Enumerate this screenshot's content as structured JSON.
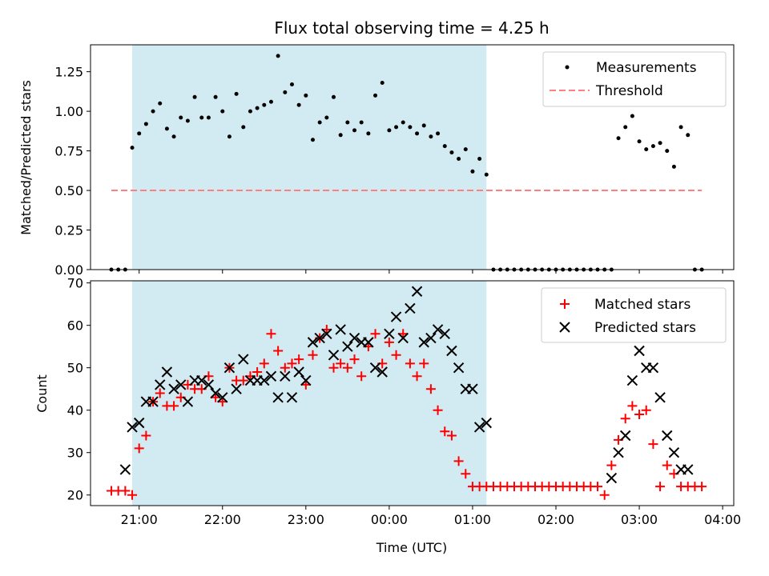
{
  "chart_data": [
    {
      "type": "scatter",
      "title": "Flux total observing time = 4.25 h",
      "xlabel": "",
      "ylabel": "Matched/Predicted stars",
      "ylim": [
        0,
        1.42
      ],
      "xlim": [
        "20:25",
        "04:08"
      ],
      "yticks": [
        "0.00",
        "0.25",
        "0.50",
        "0.75",
        "1.00",
        "1.25"
      ],
      "shaded_interval": {
        "start": "20:55",
        "end": "01:10",
        "color": "#add8e6"
      },
      "legend": {
        "placement": "top-right",
        "entries": [
          "Measurements",
          "Threshold"
        ]
      },
      "series": [
        {
          "name": "Measurements",
          "marker": "dot",
          "color": "#000000",
          "x": [
            "20:40",
            "20:45",
            "20:50",
            "20:55",
            "21:00",
            "21:05",
            "21:10",
            "21:15",
            "21:20",
            "21:25",
            "21:30",
            "21:35",
            "21:40",
            "21:45",
            "21:50",
            "21:55",
            "22:00",
            "22:05",
            "22:10",
            "22:15",
            "22:20",
            "22:25",
            "22:30",
            "22:35",
            "22:40",
            "22:45",
            "22:50",
            "22:55",
            "23:00",
            "23:05",
            "23:10",
            "23:15",
            "23:20",
            "23:25",
            "23:30",
            "23:35",
            "23:40",
            "23:45",
            "23:50",
            "23:55",
            "00:00",
            "00:05",
            "00:10",
            "00:15",
            "00:20",
            "00:25",
            "00:30",
            "00:35",
            "00:40",
            "00:45",
            "00:50",
            "00:55",
            "01:00",
            "01:05",
            "01:10",
            "01:15",
            "01:20",
            "01:25",
            "01:30",
            "01:35",
            "01:40",
            "01:45",
            "01:50",
            "01:55",
            "02:00",
            "02:05",
            "02:10",
            "02:15",
            "02:20",
            "02:25",
            "02:30",
            "02:35",
            "02:40",
            "02:45",
            "02:50",
            "02:55",
            "03:00",
            "03:05",
            "03:10",
            "03:15",
            "03:20",
            "03:25",
            "03:30",
            "03:35",
            "03:40",
            "03:45"
          ],
          "y": [
            0,
            0,
            0,
            0.77,
            0.86,
            0.92,
            1.0,
            1.05,
            0.89,
            0.84,
            0.96,
            0.94,
            1.09,
            0.96,
            0.96,
            1.09,
            1.0,
            0.84,
            1.11,
            0.9,
            1.0,
            1.02,
            1.04,
            1.06,
            1.35,
            1.12,
            1.17,
            1.04,
            1.1,
            0.82,
            0.93,
            0.96,
            1.09,
            0.85,
            0.93,
            0.88,
            0.93,
            0.86,
            1.1,
            1.18,
            0.88,
            0.9,
            0.93,
            0.9,
            0.86,
            0.91,
            0.84,
            0.86,
            0.78,
            0.74,
            0.7,
            0.76,
            0.62,
            0.7,
            0.6,
            0,
            0,
            0,
            0,
            0,
            0,
            0,
            0,
            0,
            0,
            0,
            0,
            0,
            0,
            0,
            0,
            0,
            0,
            0.83,
            0.9,
            0.97,
            0.81,
            0.76,
            0.78,
            0.8,
            0.75,
            0.65,
            0.9,
            0.85,
            0,
            0
          ]
        },
        {
          "name": "Threshold",
          "marker": "dashed-line",
          "color": "#ff7f7f",
          "x": [
            "20:40",
            "03:45"
          ],
          "y": [
            0.5,
            0.5
          ]
        }
      ]
    },
    {
      "type": "scatter",
      "title": "",
      "xlabel": "Time (UTC)",
      "ylabel": "Count",
      "ylim": [
        17.5,
        70.5
      ],
      "xlim": [
        "20:25",
        "04:08"
      ],
      "xticks": [
        "21:00",
        "22:00",
        "23:00",
        "00:00",
        "01:00",
        "02:00",
        "03:00",
        "04:00"
      ],
      "yticks": [
        "20",
        "30",
        "40",
        "50",
        "60",
        "70"
      ],
      "shaded_interval": {
        "start": "20:55",
        "end": "01:10",
        "color": "#add8e6"
      },
      "legend": {
        "placement": "top-right",
        "entries": [
          "Matched stars",
          "Predicted stars"
        ]
      },
      "series": [
        {
          "name": "Matched stars",
          "marker": "plus",
          "color": "#ff0000",
          "x": [
            "20:40",
            "20:45",
            "20:50",
            "20:55",
            "21:00",
            "21:05",
            "21:10",
            "21:15",
            "21:20",
            "21:25",
            "21:30",
            "21:35",
            "21:40",
            "21:45",
            "21:50",
            "21:55",
            "22:00",
            "22:05",
            "22:10",
            "22:15",
            "22:20",
            "22:25",
            "22:30",
            "22:35",
            "22:40",
            "22:45",
            "22:50",
            "22:55",
            "23:00",
            "23:05",
            "23:10",
            "23:15",
            "23:20",
            "23:25",
            "23:30",
            "23:35",
            "23:40",
            "23:45",
            "23:50",
            "23:55",
            "00:00",
            "00:05",
            "00:10",
            "00:15",
            "00:20",
            "00:25",
            "00:30",
            "00:35",
            "00:40",
            "00:45",
            "00:50",
            "00:55",
            "01:00",
            "01:05",
            "01:10",
            "01:15",
            "01:20",
            "01:25",
            "01:30",
            "01:35",
            "01:40",
            "01:45",
            "01:50",
            "01:55",
            "02:00",
            "02:05",
            "02:10",
            "02:15",
            "02:20",
            "02:25",
            "02:30",
            "02:35",
            "02:40",
            "02:45",
            "02:50",
            "02:55",
            "03:00",
            "03:05",
            "03:10",
            "03:15",
            "03:20",
            "03:25",
            "03:30",
            "03:35",
            "03:40",
            "03:45"
          ],
          "y": [
            21,
            21,
            21,
            20,
            31,
            34,
            42,
            44,
            41,
            41,
            43,
            46,
            45,
            45,
            48,
            43,
            42,
            50,
            47,
            47,
            48,
            49,
            51,
            58,
            54,
            50,
            51,
            52,
            46,
            53,
            57,
            59,
            50,
            51,
            50,
            52,
            48,
            55,
            58,
            51,
            56,
            53,
            58,
            51,
            48,
            51,
            45,
            40,
            35,
            34,
            28,
            25,
            22,
            22,
            22,
            22,
            22,
            22,
            22,
            22,
            22,
            22,
            22,
            22,
            22,
            22,
            22,
            22,
            22,
            22,
            22,
            20,
            27,
            33,
            38,
            41,
            39,
            40,
            32,
            22,
            27,
            25,
            22,
            22,
            22,
            22
          ]
        },
        {
          "name": "Predicted stars",
          "marker": "x",
          "color": "#000000",
          "x": [
            "20:50",
            "20:55",
            "21:00",
            "21:05",
            "21:10",
            "21:15",
            "21:20",
            "21:25",
            "21:30",
            "21:35",
            "21:40",
            "21:45",
            "21:50",
            "21:55",
            "22:00",
            "22:05",
            "22:10",
            "22:15",
            "22:20",
            "22:25",
            "22:30",
            "22:35",
            "22:40",
            "22:45",
            "22:50",
            "22:55",
            "23:00",
            "23:05",
            "23:10",
            "23:15",
            "23:20",
            "23:25",
            "23:30",
            "23:35",
            "23:40",
            "23:45",
            "23:50",
            "23:55",
            "00:00",
            "00:05",
            "00:10",
            "00:15",
            "00:20",
            "00:25",
            "00:30",
            "00:35",
            "00:40",
            "00:45",
            "00:50",
            "00:55",
            "01:00",
            "01:05",
            "01:10",
            "02:40",
            "02:45",
            "02:50",
            "02:55",
            "03:00",
            "03:05",
            "03:10",
            "03:15",
            "03:20",
            "03:25",
            "03:30",
            "03:35"
          ],
          "y": [
            26,
            36,
            37,
            42,
            42,
            46,
            49,
            45,
            46,
            42,
            47,
            47,
            46,
            44,
            43,
            50,
            45,
            52,
            47,
            47,
            47,
            48,
            43,
            48,
            43,
            49,
            47,
            56,
            57,
            58,
            53,
            59,
            55,
            57,
            56,
            56,
            50,
            49,
            58,
            62,
            57,
            64,
            68,
            56,
            57,
            59,
            58,
            54,
            50,
            45,
            45,
            36,
            37,
            24,
            30,
            34,
            47,
            54,
            50,
            50,
            43,
            34,
            30,
            26,
            26
          ]
        }
      ]
    }
  ]
}
